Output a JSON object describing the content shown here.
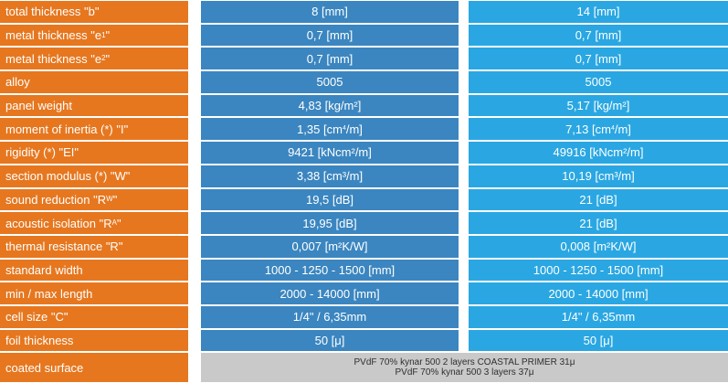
{
  "rows": [
    {
      "label": "total thickness \"b\"",
      "v1": "8 [mm]",
      "v2": "14 [mm]"
    },
    {
      "label_pre": "metal thickness \"e",
      "label_sub": "1",
      "label_post": "\"",
      "v1": "0,7 [mm]",
      "v2": "0,7 [mm]"
    },
    {
      "label_pre": "metal thickness \"e",
      "label_sub": "2",
      "label_post": "\"",
      "v1": "0,7 [mm]",
      "v2": "0,7 [mm]"
    },
    {
      "label": "alloy",
      "v1": "5005",
      "v2": "5005"
    },
    {
      "label": "panel weight",
      "v1": "4,83 [kg/m²]",
      "v2": "5,17 [kg/m²]"
    },
    {
      "label": "moment of inertia (*) \"I\"",
      "v1_pre": "1,35 [cm",
      "v1_sup": "4",
      "v1_post": "/m]",
      "v2_pre": "7,13 [cm",
      "v2_sup": "4",
      "v2_post": "/m]"
    },
    {
      "label": "rigidity (*) \"EI\"",
      "v1": "9421 [kNcm²/m]",
      "v2": "49916 [kNcm²/m]"
    },
    {
      "label": "section modulus (*) \"W\"",
      "v1": "3,38 [cm³/m]",
      "v2": "10,19 [cm³/m]"
    },
    {
      "label_pre": "sound reduction \"R",
      "label_sub": "W",
      "label_post": "\"",
      "v1": "19,5 [dB]",
      "v2": "21 [dB]"
    },
    {
      "label_pre": "acoustic isolation \"R",
      "label_sub": "A",
      "label_post": "\"",
      "v1": "19,95 [dB]",
      "v2": "21 [dB]"
    },
    {
      "label": "thermal resistance \"R\"",
      "v1": "0,007 [m²K/W]",
      "v2": "0,008 [m²K/W]"
    },
    {
      "label": "standard width",
      "v1": "1000 - 1250 - 1500 [mm]",
      "v2": "1000 - 1250 - 1500 [mm]"
    },
    {
      "label": "min / max length",
      "v1": "2000 - 14000 [mm]",
      "v2": "2000 - 14000 [mm]"
    },
    {
      "label": "cell size \"C\"",
      "v1": "1/4\" / 6,35mm",
      "v2": "1/4\" / 6,35mm"
    },
    {
      "label": "foil thickness",
      "v1": "50 [μ]",
      "v2": "50 [μ]"
    }
  ],
  "last_row": {
    "label": "coated surface",
    "line1": "PVdF 70% kynar 500 2 layers COASTAL PRIMER 31μ",
    "line2": "PVdF 70% kynar 500 3 layers 37μ"
  },
  "colors": {
    "label_bg": "#e6771f",
    "col1_bg": "#3b86c0",
    "col2_bg": "#2aa7e2",
    "merged_bg": "#c9c9c9"
  }
}
